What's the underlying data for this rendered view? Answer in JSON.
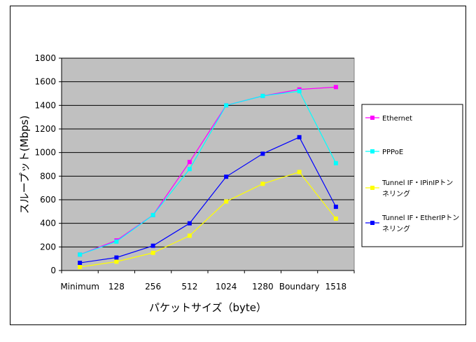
{
  "chart_data": {
    "type": "line",
    "title": "",
    "xlabel": "パケットサイズ（byte）",
    "ylabel": "スループット(Mbps)",
    "ylim": [
      0,
      1800
    ],
    "yticks": [
      0,
      200,
      400,
      600,
      800,
      1000,
      1200,
      1400,
      1600,
      1800
    ],
    "categories": [
      "Minimum",
      "128",
      "256",
      "512",
      "1024",
      "1280",
      "Boundary",
      "1518"
    ],
    "grid": true,
    "legend_position": "right",
    "series": [
      {
        "name": "Ethernet",
        "color": "#ff00ff",
        "values": [
          135,
          255,
          470,
          920,
          1400,
          1480,
          1535,
          1555
        ]
      },
      {
        "name": "PPPoE",
        "color": "#00ffff",
        "values": [
          135,
          245,
          470,
          860,
          1400,
          1480,
          1520,
          910
        ]
      },
      {
        "name": "Tunnel IF・IPinIPトンネリング",
        "color": "#ffff00",
        "legend_lines": [
          "Tunnel IF・IPinIPトン",
          "ネリング"
        ],
        "values": [
          30,
          75,
          150,
          295,
          585,
          735,
          835,
          440
        ]
      },
      {
        "name": "Tunnel IF・EtherIPトンネリング",
        "color": "#0000ff",
        "legend_lines": [
          "Tunnel IF・EtherIPトン",
          "ネリング"
        ],
        "values": [
          65,
          110,
          210,
          400,
          795,
          990,
          1130,
          540
        ]
      }
    ]
  }
}
